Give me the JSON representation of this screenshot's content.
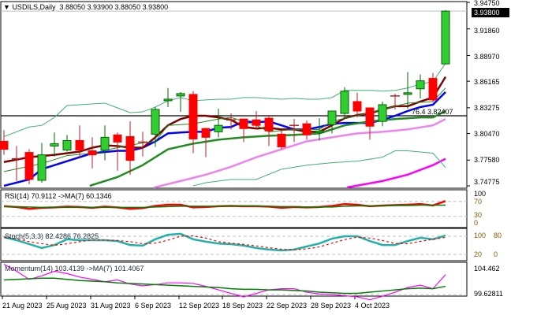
{
  "header": {
    "symbol": "USDILS,Daily",
    "ohlc": "3.88050 3.93900 3.88050 3.93800"
  },
  "price_axis": {
    "ticks": [
      "3.94750",
      "3.91860",
      "3.88970",
      "3.86165",
      "3.83275",
      "3.80470",
      "3.77580",
      "3.74775"
    ],
    "tick_values": [
      3.9475,
      3.9186,
      3.8897,
      3.86165,
      3.83275,
      3.8047,
      3.7758,
      3.74775
    ],
    "last_price": "3.93800"
  },
  "fib_line": {
    "label": "76.4 3.82407",
    "value": 3.82407
  },
  "date_axis": [
    "21 Aug 2023",
    "25 Aug 2023",
    "31 Aug 2023",
    "6 Sep 2023",
    "12 Sep 2023",
    "18 Sep 2023",
    "22 Sep 2023",
    "28 Sep 2023",
    "4 Oct 2023"
  ],
  "colors": {
    "bull": "#32cd32",
    "bear": "#ff0000",
    "ma_fast": "#0000ff",
    "ma_mid": "#800000",
    "ma_slow": "#228b22",
    "ma_long": "#ee82ee",
    "ma_200": "#ff00ff",
    "bands": "#3cb371"
  },
  "rsi": {
    "label": "RSI(14) 70.9112  ->MA(7) 60.1346",
    "levels": [
      "100",
      "70",
      "30",
      "0"
    ]
  },
  "stoch": {
    "label": "Stoch(5,3,3) 82.4286 76.2825",
    "levels": [
      "100",
      "80",
      "20",
      "0"
    ]
  },
  "momentum": {
    "label": "Momentum(14) 103.4139  ->MA(7) 101.4067",
    "levels": [
      "104.462",
      "99.62811"
    ]
  },
  "chart_data": {
    "type": "candlestick",
    "ohlc": [
      [
        3.7962,
        3.8084,
        3.7815,
        3.7876
      ],
      [
        3.7772,
        3.7911,
        3.753,
        3.7772
      ],
      [
        3.7841,
        3.7876,
        3.7495,
        3.7547
      ],
      [
        3.7538,
        3.7945,
        3.7512,
        3.7815
      ],
      [
        3.7911,
        3.8058,
        3.7798,
        3.7937
      ],
      [
        3.7867,
        3.8032,
        3.785,
        3.7971
      ],
      [
        3.7971,
        3.8136,
        3.7789,
        3.7867
      ],
      [
        3.7859,
        3.8006,
        3.7668,
        3.7815
      ],
      [
        3.7867,
        3.8136,
        3.7755,
        3.8006
      ],
      [
        3.8032,
        3.8058,
        3.7642,
        3.7954
      ],
      [
        3.8014,
        3.8179,
        3.7599,
        3.7755
      ],
      [
        3.7954,
        3.8066,
        3.7798,
        3.7954
      ],
      [
        3.804,
        3.8335,
        3.7902,
        3.8309
      ],
      [
        3.8404,
        3.8543,
        3.8335,
        3.8421
      ],
      [
        3.8456,
        3.8499,
        3.8283,
        3.8482
      ],
      [
        3.8473,
        3.8508,
        3.7833,
        3.7988
      ],
      [
        3.8101,
        3.811,
        3.7789,
        3.8006
      ],
      [
        3.8066,
        3.8318,
        3.8006,
        3.8136
      ],
      [
        3.8196,
        3.8266,
        3.8092,
        3.8196
      ],
      [
        3.8205,
        3.8205,
        3.7954,
        3.8101
      ],
      [
        3.8196,
        3.8292,
        3.8092,
        3.8136
      ],
      [
        3.8214,
        3.824,
        3.7911,
        3.8075
      ],
      [
        3.804,
        3.8084,
        3.7876,
        3.7902
      ],
      [
        3.8136,
        3.8205,
        3.7954,
        3.8136
      ],
      [
        3.8153,
        3.8188,
        3.798,
        3.8032
      ],
      [
        3.8058,
        3.8214,
        3.7971,
        3.8075
      ],
      [
        3.8144,
        3.8292,
        3.8049,
        3.8292
      ],
      [
        3.8266,
        3.8551,
        3.8205,
        3.8508
      ],
      [
        3.8395,
        3.8491,
        3.8222,
        3.8292
      ],
      [
        3.8326,
        3.8326,
        3.798,
        3.8127
      ],
      [
        3.8179,
        3.8395,
        3.8127,
        3.8361
      ],
      [
        3.8456,
        3.8482,
        3.8309,
        3.8456
      ],
      [
        3.8473,
        3.8716,
        3.8318,
        3.8491
      ],
      [
        3.8534,
        3.869,
        3.843,
        3.8621
      ],
      [
        3.8647,
        3.8707,
        3.8395,
        3.8413
      ],
      [
        3.8805,
        3.939,
        3.8805,
        3.938
      ]
    ],
    "ylim": [
      3.74775,
      3.9475
    ],
    "overlays": [
      {
        "key": "ma_fast",
        "width": 2.5,
        "points": [
          [
            0,
            3.7478
          ],
          [
            2,
            3.7547
          ],
          [
            3,
            3.7659
          ],
          [
            5,
            3.7746
          ],
          [
            7,
            3.7833
          ],
          [
            9,
            3.7859
          ],
          [
            10,
            3.7859
          ],
          [
            11,
            3.7893
          ],
          [
            12,
            3.7962
          ],
          [
            13,
            3.8049
          ],
          [
            14,
            3.8058
          ],
          [
            15,
            3.8066
          ],
          [
            16,
            3.8066
          ],
          [
            17,
            3.811
          ],
          [
            18,
            3.8118
          ],
          [
            19,
            3.8179
          ],
          [
            20,
            3.817
          ],
          [
            21,
            3.8179
          ],
          [
            22,
            3.8136
          ],
          [
            23,
            3.8092
          ],
          [
            24,
            3.8092
          ],
          [
            25,
            3.8118
          ],
          [
            26,
            3.8153
          ],
          [
            27,
            3.8162
          ],
          [
            29,
            3.8162
          ],
          [
            30,
            3.8196
          ],
          [
            31,
            3.824
          ],
          [
            32,
            3.8292
          ],
          [
            33,
            3.8335
          ],
          [
            34,
            3.8361
          ],
          [
            35,
            3.8499
          ]
        ]
      },
      {
        "key": "ma_mid",
        "width": 2.5,
        "points": [
          [
            0,
            3.7737
          ],
          [
            2,
            3.7789
          ],
          [
            4,
            3.7815
          ],
          [
            6,
            3.785
          ],
          [
            7,
            3.7893
          ],
          [
            8,
            3.7919
          ],
          [
            9,
            3.7911
          ],
          [
            10,
            3.7893
          ],
          [
            11,
            3.7893
          ],
          [
            12,
            3.8006
          ],
          [
            13,
            3.8136
          ],
          [
            14,
            3.8205
          ],
          [
            15,
            3.824
          ],
          [
            16,
            3.824
          ],
          [
            17,
            3.8222
          ],
          [
            18,
            3.8196
          ],
          [
            19,
            3.8118
          ],
          [
            20,
            3.8101
          ],
          [
            21,
            3.811
          ],
          [
            22,
            3.8092
          ],
          [
            23,
            3.8092
          ],
          [
            24,
            3.8066
          ],
          [
            25,
            3.8066
          ],
          [
            26,
            3.8136
          ],
          [
            27,
            3.8214
          ],
          [
            28,
            3.8248
          ],
          [
            29,
            3.8266
          ],
          [
            30,
            3.8309
          ],
          [
            31,
            3.8344
          ],
          [
            32,
            3.8344
          ],
          [
            33,
            3.8395
          ],
          [
            34,
            3.8439
          ],
          [
            35,
            3.8664
          ]
        ]
      },
      {
        "key": "ma_slow",
        "width": 1,
        "points": [
          [
            0,
            3.7633
          ],
          [
            3,
            3.772
          ],
          [
            5,
            3.7807
          ],
          [
            7,
            3.7833
          ],
          [
            9,
            3.7893
          ],
          [
            11,
            3.7945
          ],
          [
            12,
            3.7962
          ],
          [
            13,
            3.8136
          ],
          [
            15,
            3.8153
          ],
          [
            16,
            3.8179
          ],
          [
            17,
            3.8205
          ],
          [
            18,
            3.8222
          ],
          [
            19,
            3.8179
          ],
          [
            20,
            3.8136
          ],
          [
            21,
            3.8066
          ],
          [
            23,
            3.8092
          ],
          [
            25,
            3.8092
          ],
          [
            26,
            3.8179
          ],
          [
            27,
            3.8214
          ],
          [
            28,
            3.824
          ],
          [
            30,
            3.8309
          ],
          [
            32,
            3.8378
          ],
          [
            34,
            3.8395
          ],
          [
            35,
            3.8543
          ]
        ]
      },
      {
        "key": "ma_slow",
        "width": 2.5,
        "points": [
          [
            6.8,
            3.7478
          ],
          [
            9,
            3.7573
          ],
          [
            11,
            3.7703
          ],
          [
            13,
            3.7876
          ],
          [
            15,
            3.7937
          ],
          [
            17,
            3.798
          ],
          [
            19,
            3.8006
          ],
          [
            21,
            3.8023
          ],
          [
            23,
            3.8032
          ],
          [
            25,
            3.8049
          ],
          [
            26,
            3.8092
          ],
          [
            27,
            3.8136
          ],
          [
            29,
            3.8179
          ],
          [
            31,
            3.8205
          ],
          [
            33,
            3.8222
          ],
          [
            34,
            3.8222
          ],
          [
            35,
            3.8292
          ]
        ]
      },
      {
        "key": "ma_long",
        "width": 2.5,
        "points": [
          [
            11.9,
            3.746
          ],
          [
            14,
            3.753
          ],
          [
            16,
            3.7599
          ],
          [
            18,
            3.7685
          ],
          [
            20,
            3.7789
          ],
          [
            22,
            3.7876
          ],
          [
            24,
            3.7962
          ],
          [
            26,
            3.8006
          ],
          [
            28,
            3.8049
          ],
          [
            30,
            3.8066
          ],
          [
            32,
            3.8092
          ],
          [
            34,
            3.8136
          ],
          [
            35,
            3.8205
          ]
        ]
      },
      {
        "key": "ma_200",
        "width": 2.5,
        "points": [
          [
            27.2,
            3.746
          ],
          [
            30,
            3.753
          ],
          [
            32,
            3.7599
          ],
          [
            34,
            3.7703
          ],
          [
            35,
            3.7772
          ]
        ]
      },
      {
        "key": "bands",
        "width": 1,
        "points": [
          [
            0,
            3.8014
          ],
          [
            2,
            3.8118
          ],
          [
            3,
            3.8136
          ],
          [
            4,
            3.8222
          ],
          [
            5,
            3.8352
          ],
          [
            6,
            3.8361
          ],
          [
            8,
            3.8378
          ],
          [
            9,
            3.8326
          ],
          [
            10,
            3.8274
          ],
          [
            11,
            3.8283
          ],
          [
            12,
            3.8335
          ],
          [
            13,
            3.8404
          ],
          [
            14,
            3.8439
          ],
          [
            15,
            3.8404
          ],
          [
            16,
            3.8413
          ],
          [
            17,
            3.8421
          ],
          [
            18,
            3.8421
          ],
          [
            19,
            3.8439
          ],
          [
            20,
            3.8439
          ],
          [
            21,
            3.843
          ],
          [
            22,
            3.8421
          ],
          [
            23,
            3.843
          ],
          [
            24,
            3.8421
          ],
          [
            25,
            3.8421
          ],
          [
            26,
            3.8439
          ],
          [
            27,
            3.8517
          ],
          [
            28,
            3.8517
          ],
          [
            29,
            3.8517
          ],
          [
            30,
            3.8508
          ],
          [
            31,
            3.8517
          ],
          [
            32,
            3.8543
          ],
          [
            33,
            3.8586
          ],
          [
            34,
            3.8612
          ],
          [
            35,
            3.8811
          ]
        ]
      },
      {
        "key": "bands",
        "width": 1,
        "points": [
          [
            15,
            3.7478
          ],
          [
            16,
            3.7512
          ],
          [
            18,
            3.7547
          ],
          [
            20,
            3.7547
          ],
          [
            22,
            3.7659
          ],
          [
            24,
            3.7703
          ],
          [
            26,
            3.7729
          ],
          [
            28,
            3.7746
          ],
          [
            30,
            3.7789
          ],
          [
            31,
            3.7859
          ],
          [
            32,
            3.7859
          ],
          [
            34,
            3.7833
          ],
          [
            35,
            3.7677
          ]
        ]
      }
    ],
    "rsi": [
      57,
      55,
      50,
      53,
      54,
      56,
      55,
      53,
      56,
      54,
      50,
      52,
      58,
      61,
      61,
      54,
      55,
      57,
      58,
      57,
      57,
      56,
      53,
      55,
      54,
      55,
      58,
      63,
      61,
      57,
      59,
      60,
      61,
      63,
      59,
      70.91
    ],
    "rsi_ma": [
      56,
      56,
      55,
      54,
      54,
      54,
      54,
      54,
      54,
      54,
      54,
      54,
      55,
      56,
      57,
      57,
      57,
      57,
      58,
      58,
      58,
      57,
      56,
      56,
      55,
      55,
      55,
      57,
      58,
      58,
      58,
      59,
      59,
      60,
      60,
      60.13
    ],
    "stoch_k": [
      77,
      67,
      54,
      41,
      51,
      70,
      67,
      67,
      67,
      64,
      51,
      49,
      70,
      85,
      88,
      70,
      62,
      56,
      54,
      49,
      41,
      36,
      33,
      36,
      46,
      56,
      72,
      80,
      80,
      64,
      51,
      51,
      64,
      75,
      70,
      82.43
    ],
    "stoch_d": [
      78,
      72,
      62,
      55,
      50,
      55,
      62,
      68,
      67,
      66,
      62,
      55,
      57,
      67,
      80,
      81,
      74,
      62,
      57,
      53,
      48,
      42,
      37,
      35,
      38,
      45,
      57,
      69,
      77,
      74,
      66,
      56,
      55,
      63,
      70,
      76.28
    ],
    "momentum": [
      105.2,
      104,
      102.6,
      103.2,
      104,
      103.6,
      103,
      102.6,
      102.2,
      102.5,
      101.8,
      101.5,
      101.7,
      102,
      102,
      101.9,
      101.4,
      100.8,
      100.2,
      99.6,
      100.2,
      100.8,
      101,
      101,
      100.4,
      100.1,
      100,
      99.8,
      99.6,
      99.1,
      99.7,
      100.4,
      101.2,
      101.6,
      101,
      103.41
    ],
    "momentum_ma": [
      102.5,
      102.6,
      102.7,
      102.8,
      102.8,
      102.6,
      102.4,
      102.3,
      102.2,
      102,
      101.9,
      101.8,
      101.7,
      101.6,
      101.5,
      101.4,
      101.3,
      101.2,
      101,
      100.9,
      100.9,
      100.8,
      100.8,
      100.7,
      100.6,
      100.4,
      100.3,
      100.2,
      100.2,
      100.4,
      100.6,
      100.8,
      101,
      101.1,
      101,
      101.41
    ]
  }
}
